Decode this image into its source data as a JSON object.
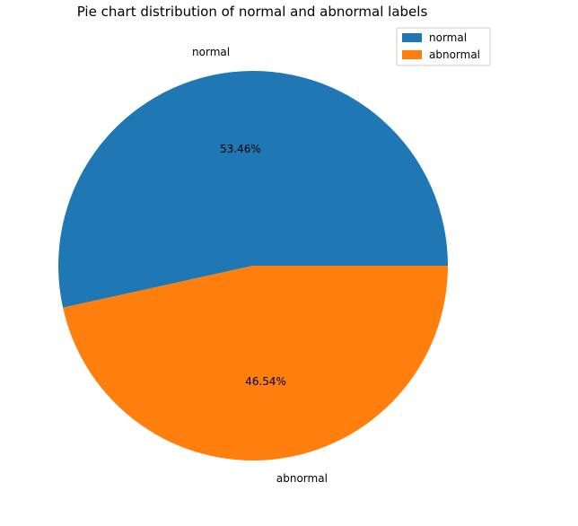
{
  "chart_data": {
    "type": "pie",
    "title": "Pie chart distribution of normal and abnormal labels",
    "slices": [
      {
        "label": "normal",
        "value": 53.46,
        "pct_label": "53.46%",
        "color": "#1f77b4"
      },
      {
        "label": "abnormal",
        "value": 46.54,
        "pct_label": "46.54%",
        "color": "#ff7f0e"
      }
    ],
    "legend": {
      "placement": "top-right",
      "entries": [
        "normal",
        "abnormal"
      ]
    }
  }
}
